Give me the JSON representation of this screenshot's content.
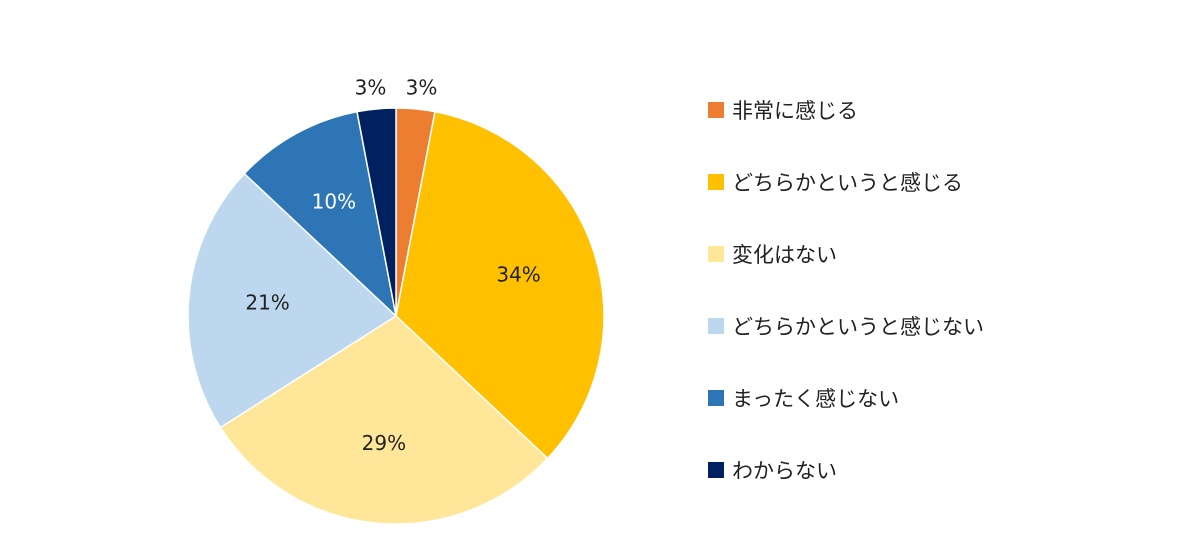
{
  "chart_data": {
    "type": "pie",
    "title": "",
    "start": "top, clockwise",
    "legend_position": "right",
    "slices": [
      {
        "label": "非常に感じる",
        "value": 3,
        "value_label": "3%",
        "color": "#ED7D31"
      },
      {
        "label": "どちらかというと感じる",
        "value": 34,
        "value_label": "34%",
        "color": "#FFC000"
      },
      {
        "label": "変化はない",
        "value": 29,
        "value_label": "29%",
        "color": "#FFE699"
      },
      {
        "label": "どちらかというと感じない",
        "value": 21,
        "value_label": "21%",
        "color": "#BDD7EE"
      },
      {
        "label": "まったく感じない",
        "value": 10,
        "value_label": "10%",
        "color": "#2E75B6"
      },
      {
        "label": "わからない",
        "value": 3,
        "value_label": "3%",
        "color": "#002060"
      }
    ]
  }
}
